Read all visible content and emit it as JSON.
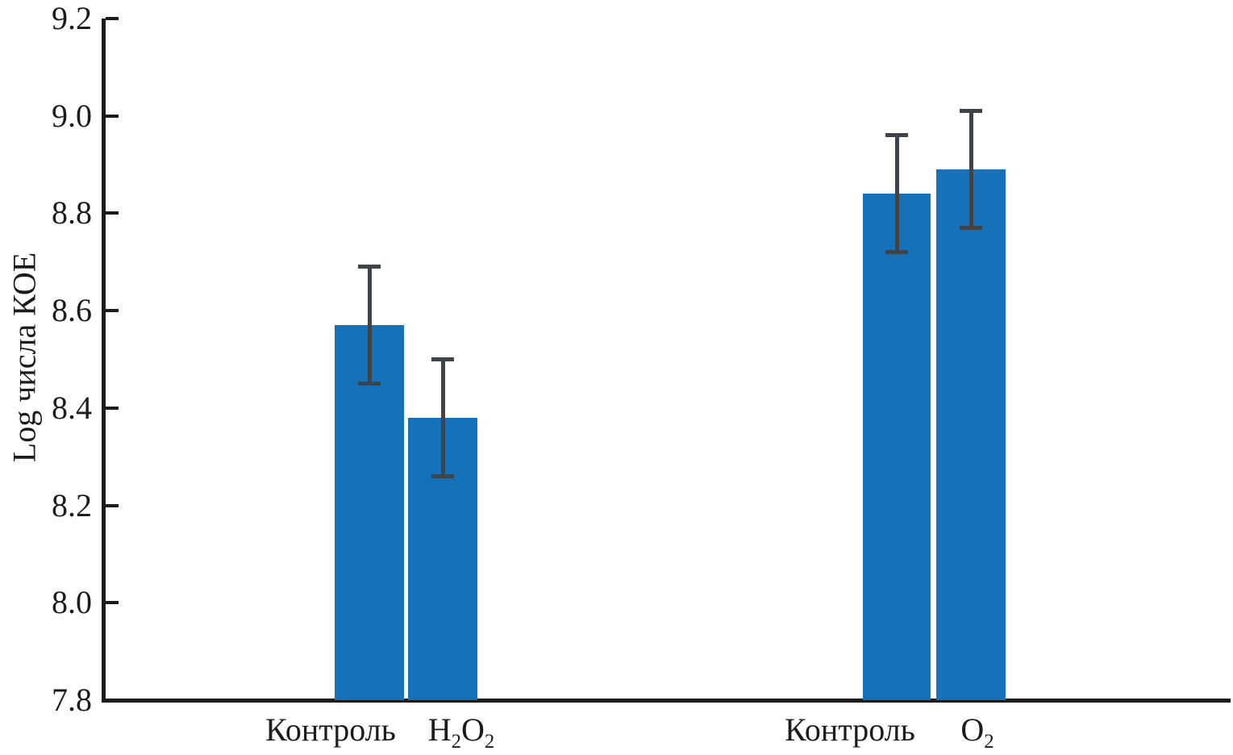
{
  "chart_data": {
    "type": "bar",
    "title": "",
    "xlabel": "",
    "ylabel": "Log числа КОЕ",
    "ylim": [
      7.8,
      9.2
    ],
    "yticks": [
      7.8,
      8.0,
      8.2,
      8.4,
      8.6,
      8.8,
      9.0,
      9.2
    ],
    "ytick_labels": [
      "7.8",
      "8.0",
      "8.2",
      "8.4",
      "8.6",
      "8.8",
      "9.0",
      "9.2"
    ],
    "grid": false,
    "legend_position": "none",
    "colors": {
      "bar": "#1572b9",
      "error_bar": "#3f4448",
      "axis": "#1c1c1c",
      "background": "#ffffff"
    },
    "groups": [
      {
        "bars": [
          {
            "label": "Контроль",
            "label_rich": "Контроль",
            "value": 8.57,
            "error": 0.12
          },
          {
            "label": "H2O2",
            "label_rich": "H~2~O~2~",
            "value": 8.38,
            "error": 0.12
          }
        ]
      },
      {
        "bars": [
          {
            "label": "Контроль",
            "label_rich": "Контроль",
            "value": 8.84,
            "error": 0.12
          },
          {
            "label": "O2",
            "label_rich": "O~2~",
            "value": 8.89,
            "error": 0.12
          }
        ]
      }
    ]
  }
}
